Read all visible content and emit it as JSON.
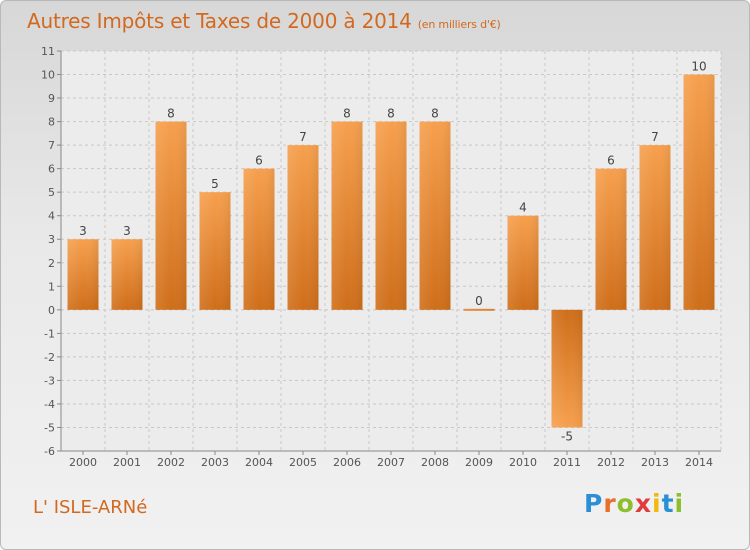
{
  "header": {
    "title": "Autres Impôts et Taxes de 2000 à 2014",
    "subtitle": "(en milliers d'€)"
  },
  "footer": {
    "commune": "L' ISLE-ARNé",
    "logo": [
      "P",
      "r",
      "o",
      "x",
      "i",
      "t",
      "i"
    ]
  },
  "chart_data": {
    "type": "bar",
    "title": "Autres Impôts et Taxes de 2000 à 2014",
    "subtitle": "(en milliers d'€)",
    "categories": [
      "2000",
      "2001",
      "2002",
      "2003",
      "2004",
      "2005",
      "2006",
      "2007",
      "2008",
      "2009",
      "2010",
      "2011",
      "2012",
      "2013",
      "2014"
    ],
    "values": [
      3,
      3,
      8,
      5,
      6,
      7,
      8,
      8,
      8,
      0,
      4,
      -5,
      6,
      7,
      10
    ],
    "value_labels": [
      "3",
      "3",
      "8",
      "5",
      "6",
      "7",
      "8",
      "8",
      "8",
      "0",
      "4",
      "-5",
      "6",
      "7",
      "10"
    ],
    "ylim": [
      -6,
      11
    ],
    "yticks": [
      -6,
      -5,
      -4,
      -3,
      -2,
      -1,
      0,
      1,
      2,
      3,
      4,
      5,
      6,
      7,
      8,
      9,
      10,
      11
    ],
    "ytick_labels": [
      "-6",
      "-5",
      "-4",
      "-3",
      "-2",
      "-1",
      "0",
      "1",
      "2",
      "3",
      "4",
      "5",
      "6",
      "7",
      "8",
      "9",
      "10",
      "11"
    ],
    "grid": true,
    "colors": {
      "bar_light": "#f6a04e",
      "bar_dark": "#cf6e1a",
      "grid": "#c8c8c8",
      "text": "#555555"
    }
  }
}
